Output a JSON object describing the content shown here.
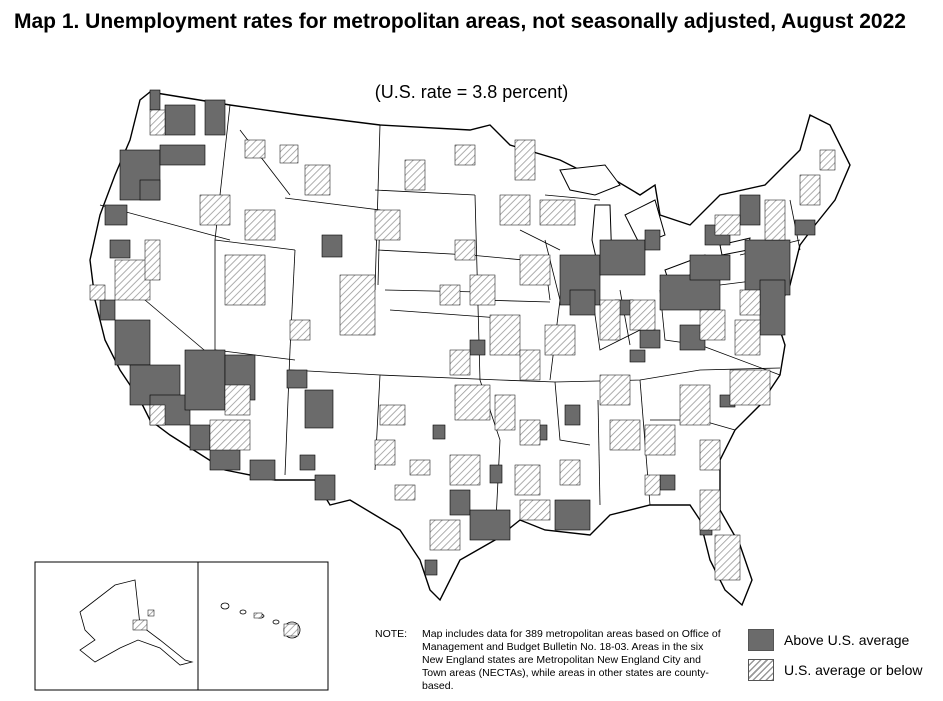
{
  "title": "Map 1. Unemployment rates for metropolitan areas, not seasonally adjusted, August 2022",
  "subtitle": "(U.S. rate = 3.8 percent)",
  "note": {
    "label": "NOTE:",
    "text": "Map includes data for 389 metropolitan areas based on Office of Management and Budget Bulletin No. 18-03. Areas in the six New England states are Metropolitan New England City and Town areas (NECTAs), while areas in other states are county-based."
  },
  "legend": {
    "above": "Above U.S. average",
    "below": "U.S. average or below"
  },
  "colors": {
    "above": "#6b6b6b",
    "below_hatch": "#999999",
    "border": "#000000"
  }
}
